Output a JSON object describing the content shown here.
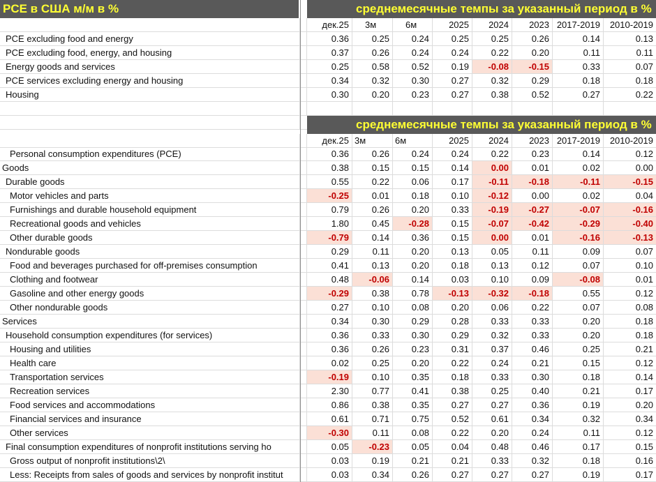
{
  "title": "PCE в США м/м в %",
  "band_title": "среднемесячные темпы за указанный период в %",
  "colors": {
    "band_bg": "#595959",
    "band_text": "#ffff33",
    "neg_bg": "#fbe0d6",
    "neg_text": "#c00000"
  },
  "table1": {
    "columns": [
      "дек.25",
      "3м",
      "6м",
      "2025",
      "2024",
      "2023",
      "2017-2019",
      "2010-2019"
    ],
    "rows": [
      {
        "label": "PCE excluding food and energy",
        "level": 1,
        "values": [
          "0.36",
          "0.25",
          "0.24",
          "0.25",
          "0.25",
          "0.26",
          "0.14",
          "0.13"
        ]
      },
      {
        "label": "PCE excluding food, energy, and housing",
        "level": 1,
        "values": [
          "0.37",
          "0.26",
          "0.24",
          "0.24",
          "0.22",
          "0.20",
          "0.11",
          "0.11"
        ]
      },
      {
        "label": "Energy goods and services",
        "level": 1,
        "values": [
          "0.25",
          "0.58",
          "0.52",
          "0.19",
          "-0.08",
          "-0.15",
          "0.33",
          "0.07"
        ]
      },
      {
        "label": "PCE services excluding energy and housing",
        "level": 1,
        "values": [
          "0.34",
          "0.32",
          "0.30",
          "0.27",
          "0.32",
          "0.29",
          "0.18",
          "0.18"
        ]
      },
      {
        "label": "Housing",
        "level": 1,
        "values": [
          "0.30",
          "0.20",
          "0.23",
          "0.27",
          "0.38",
          "0.52",
          "0.27",
          "0.22"
        ]
      }
    ]
  },
  "table2": {
    "columns": [
      "дек.25",
      "3м",
      "6м",
      "2025",
      "2024",
      "2023",
      "2017-2019",
      "2010-2019"
    ],
    "rows": [
      {
        "label": "Personal consumption expenditures (PCE)",
        "level": 2,
        "values": [
          "0.36",
          "0.26",
          "0.24",
          "0.24",
          "0.22",
          "0.23",
          "0.14",
          "0.12"
        ],
        "hl": []
      },
      {
        "label": "Goods",
        "level": 0,
        "values": [
          "0.38",
          "0.15",
          "0.15",
          "0.14",
          "0.00",
          "0.01",
          "0.02",
          "0.00"
        ],
        "hl": [
          4
        ]
      },
      {
        "label": "Durable goods",
        "level": 1,
        "values": [
          "0.55",
          "0.22",
          "0.06",
          "0.17",
          "-0.11",
          "-0.18",
          "-0.11",
          "-0.15"
        ],
        "hl": [
          4,
          5,
          6,
          7
        ]
      },
      {
        "label": "Motor vehicles and parts",
        "level": 2,
        "values": [
          "-0.25",
          "0.01",
          "0.18",
          "0.10",
          "-0.12",
          "0.00",
          "0.02",
          "0.04"
        ],
        "hl": [
          0,
          4
        ]
      },
      {
        "label": "Furnishings and durable household equipment",
        "level": 2,
        "values": [
          "0.79",
          "0.26",
          "0.20",
          "0.33",
          "-0.19",
          "-0.27",
          "-0.07",
          "-0.16"
        ],
        "hl": [
          4,
          5,
          6,
          7
        ]
      },
      {
        "label": "Recreational goods and vehicles",
        "level": 2,
        "values": [
          "1.80",
          "0.45",
          "-0.28",
          "0.15",
          "-0.07",
          "-0.42",
          "-0.29",
          "-0.40"
        ],
        "hl": [
          2,
          4,
          5,
          6,
          7
        ]
      },
      {
        "label": "Other durable goods",
        "level": 2,
        "values": [
          "-0.79",
          "0.14",
          "0.36",
          "0.15",
          "0.00",
          "0.01",
          "-0.16",
          "-0.13"
        ],
        "hl": [
          0,
          4,
          6,
          7
        ]
      },
      {
        "label": "Nondurable goods",
        "level": 1,
        "values": [
          "0.29",
          "0.11",
          "0.20",
          "0.13",
          "0.05",
          "0.11",
          "0.09",
          "0.07"
        ],
        "hl": []
      },
      {
        "label": "Food and beverages purchased for off-premises consumption",
        "level": 2,
        "values": [
          "0.41",
          "0.13",
          "0.20",
          "0.18",
          "0.13",
          "0.12",
          "0.07",
          "0.10"
        ],
        "hl": []
      },
      {
        "label": "Clothing and footwear",
        "level": 2,
        "values": [
          "0.48",
          "-0.06",
          "0.14",
          "0.03",
          "0.10",
          "0.09",
          "-0.08",
          "0.01"
        ],
        "hl": [
          1,
          6
        ]
      },
      {
        "label": "Gasoline and other energy goods",
        "level": 2,
        "values": [
          "-0.29",
          "0.38",
          "0.78",
          "-0.13",
          "-0.32",
          "-0.18",
          "0.55",
          "0.12"
        ],
        "hl": [
          0,
          3,
          4,
          5
        ]
      },
      {
        "label": "Other nondurable goods",
        "level": 2,
        "values": [
          "0.27",
          "0.10",
          "0.08",
          "0.20",
          "0.06",
          "0.22",
          "0.07",
          "0.08"
        ],
        "hl": []
      },
      {
        "label": "Services",
        "level": 0,
        "values": [
          "0.34",
          "0.30",
          "0.29",
          "0.28",
          "0.33",
          "0.33",
          "0.20",
          "0.18"
        ],
        "hl": []
      },
      {
        "label": "Household consumption expenditures (for services)",
        "level": 1,
        "values": [
          "0.36",
          "0.33",
          "0.30",
          "0.29",
          "0.32",
          "0.33",
          "0.20",
          "0.18"
        ],
        "hl": []
      },
      {
        "label": "Housing and utilities",
        "level": 2,
        "values": [
          "0.36",
          "0.26",
          "0.23",
          "0.31",
          "0.37",
          "0.46",
          "0.25",
          "0.21"
        ],
        "hl": []
      },
      {
        "label": "Health care",
        "level": 2,
        "values": [
          "0.02",
          "0.25",
          "0.20",
          "0.22",
          "0.24",
          "0.21",
          "0.15",
          "0.12"
        ],
        "hl": []
      },
      {
        "label": "Transportation services",
        "level": 2,
        "values": [
          "-0.19",
          "0.10",
          "0.35",
          "0.18",
          "0.33",
          "0.30",
          "0.18",
          "0.14"
        ],
        "hl": [
          0
        ]
      },
      {
        "label": "Recreation services",
        "level": 2,
        "values": [
          "2.30",
          "0.77",
          "0.41",
          "0.38",
          "0.25",
          "0.40",
          "0.21",
          "0.17"
        ],
        "hl": []
      },
      {
        "label": "Food services and accommodations",
        "level": 2,
        "values": [
          "0.86",
          "0.38",
          "0.35",
          "0.27",
          "0.27",
          "0.36",
          "0.19",
          "0.20"
        ],
        "hl": []
      },
      {
        "label": "Financial services and insurance",
        "level": 2,
        "values": [
          "0.61",
          "0.71",
          "0.75",
          "0.52",
          "0.61",
          "0.34",
          "0.32",
          "0.34"
        ],
        "hl": []
      },
      {
        "label": "Other services",
        "level": 2,
        "values": [
          "-0.30",
          "0.11",
          "0.08",
          "0.22",
          "0.20",
          "0.24",
          "0.11",
          "0.12"
        ],
        "hl": [
          0
        ]
      },
      {
        "label": "Final consumption expenditures of nonprofit institutions serving ho",
        "level": 1,
        "values": [
          "0.05",
          "-0.23",
          "0.05",
          "0.04",
          "0.48",
          "0.46",
          "0.17",
          "0.15"
        ],
        "hl": [
          1
        ]
      },
      {
        "label": "Gross output of nonprofit institutions\\2\\",
        "level": 2,
        "values": [
          "0.03",
          "0.19",
          "0.21",
          "0.21",
          "0.33",
          "0.32",
          "0.18",
          "0.16"
        ],
        "hl": []
      },
      {
        "label": "Less: Receipts from sales of goods and services by nonprofit institut",
        "level": 2,
        "values": [
          "0.03",
          "0.34",
          "0.26",
          "0.27",
          "0.27",
          "0.27",
          "0.19",
          "0.17"
        ],
        "hl": []
      }
    ]
  }
}
